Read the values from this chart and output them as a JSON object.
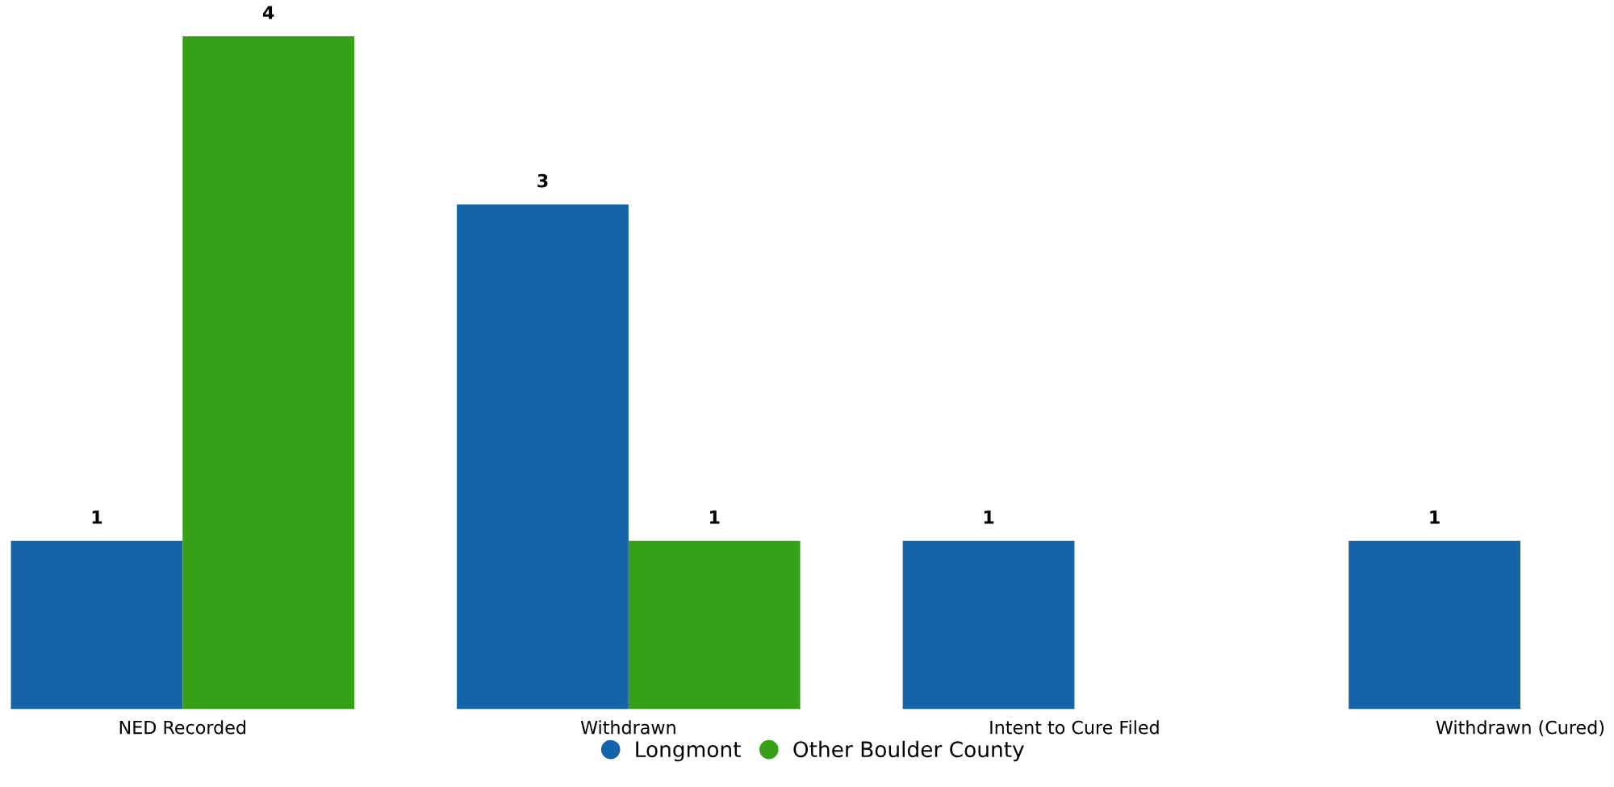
{
  "chart_data": {
    "type": "bar",
    "categories": [
      "NED Recorded",
      "Withdrawn",
      "Intent to Cure Filed",
      "Withdrawn (Cured)"
    ],
    "series": [
      {
        "name": "Longmont",
        "color": "#1563a8",
        "values": [
          1,
          3,
          1,
          1
        ]
      },
      {
        "name": "Other Boulder County",
        "color": "#36a118",
        "values": [
          4,
          1,
          null,
          null
        ]
      }
    ],
    "data_labels": true,
    "legend": "bottom"
  }
}
